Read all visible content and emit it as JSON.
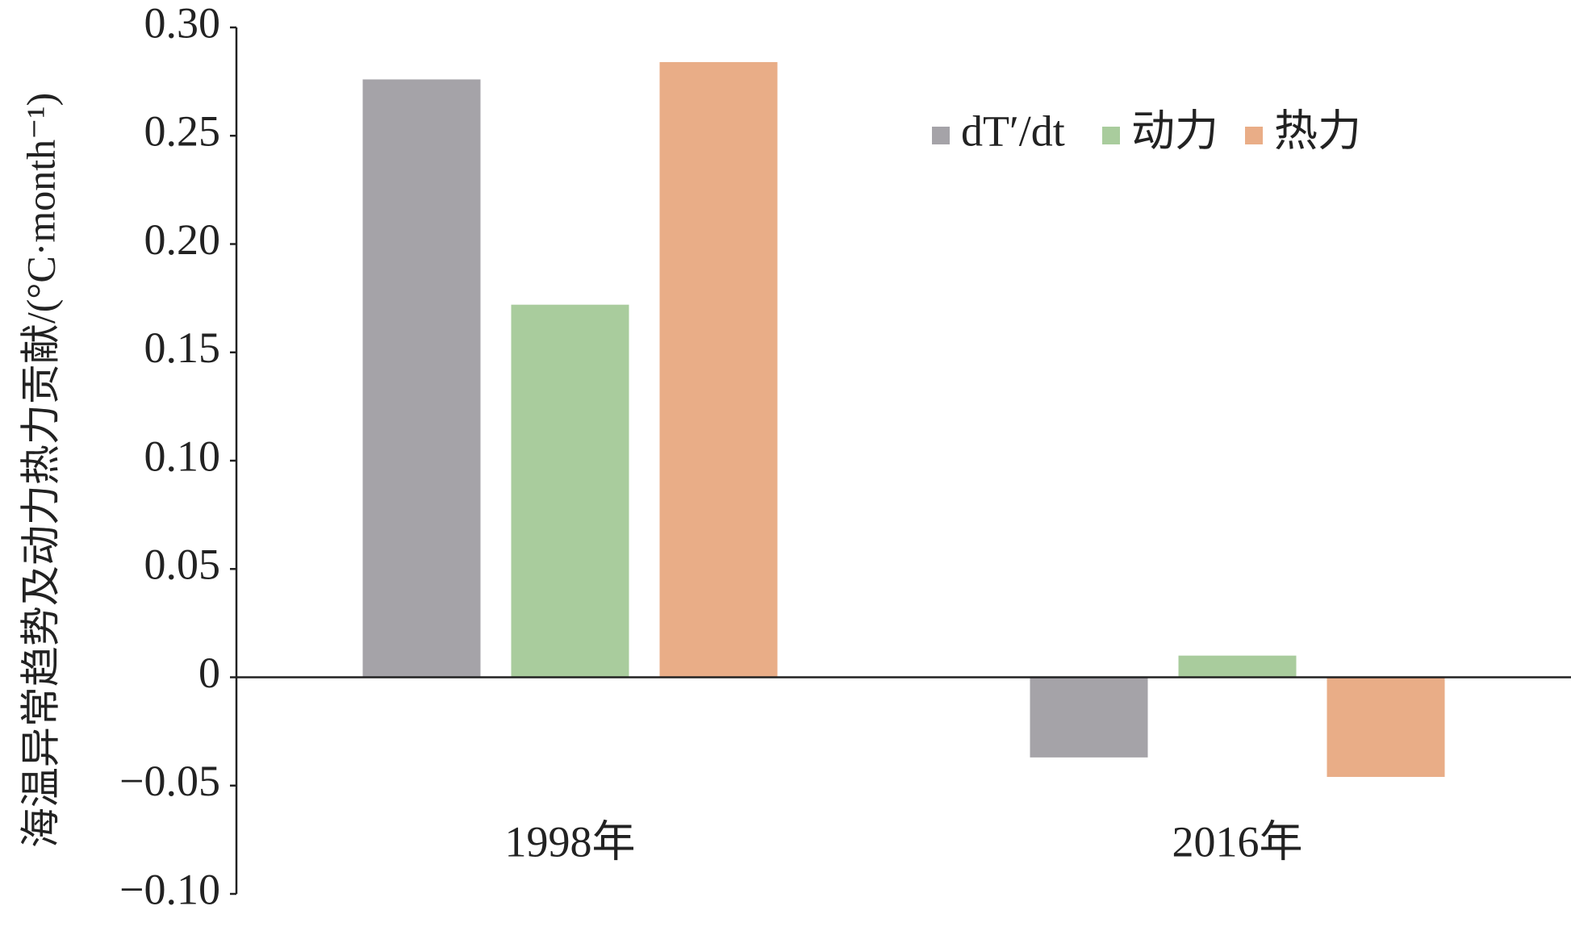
{
  "chart_data": {
    "type": "bar",
    "y_label": "海温异常趋势及动力热力贡献/(°C·month⁻¹)",
    "categories": [
      "1998年",
      "2016年"
    ],
    "series": [
      {
        "name": "dT′/dt",
        "color": "#a5a3a8",
        "values": [
          0.276,
          -0.037
        ]
      },
      {
        "name": "动力",
        "color": "#a9cc9d",
        "values": [
          0.172,
          0.01
        ]
      },
      {
        "name": "热力",
        "color": "#e9ad87",
        "values": [
          0.284,
          -0.046
        ]
      }
    ],
    "ylim": [
      -0.1,
      0.3
    ],
    "yticks": [
      {
        "value": -0.1,
        "label": "−0.10"
      },
      {
        "value": -0.05,
        "label": "−0.05"
      },
      0,
      0.05,
      {
        "value": 0.1,
        "label": "0.10"
      },
      0.15,
      {
        "value": 0.2,
        "label": "0.20"
      },
      0.25,
      {
        "value": 0.3,
        "label": "0.30"
      }
    ],
    "legend": "top-right"
  }
}
